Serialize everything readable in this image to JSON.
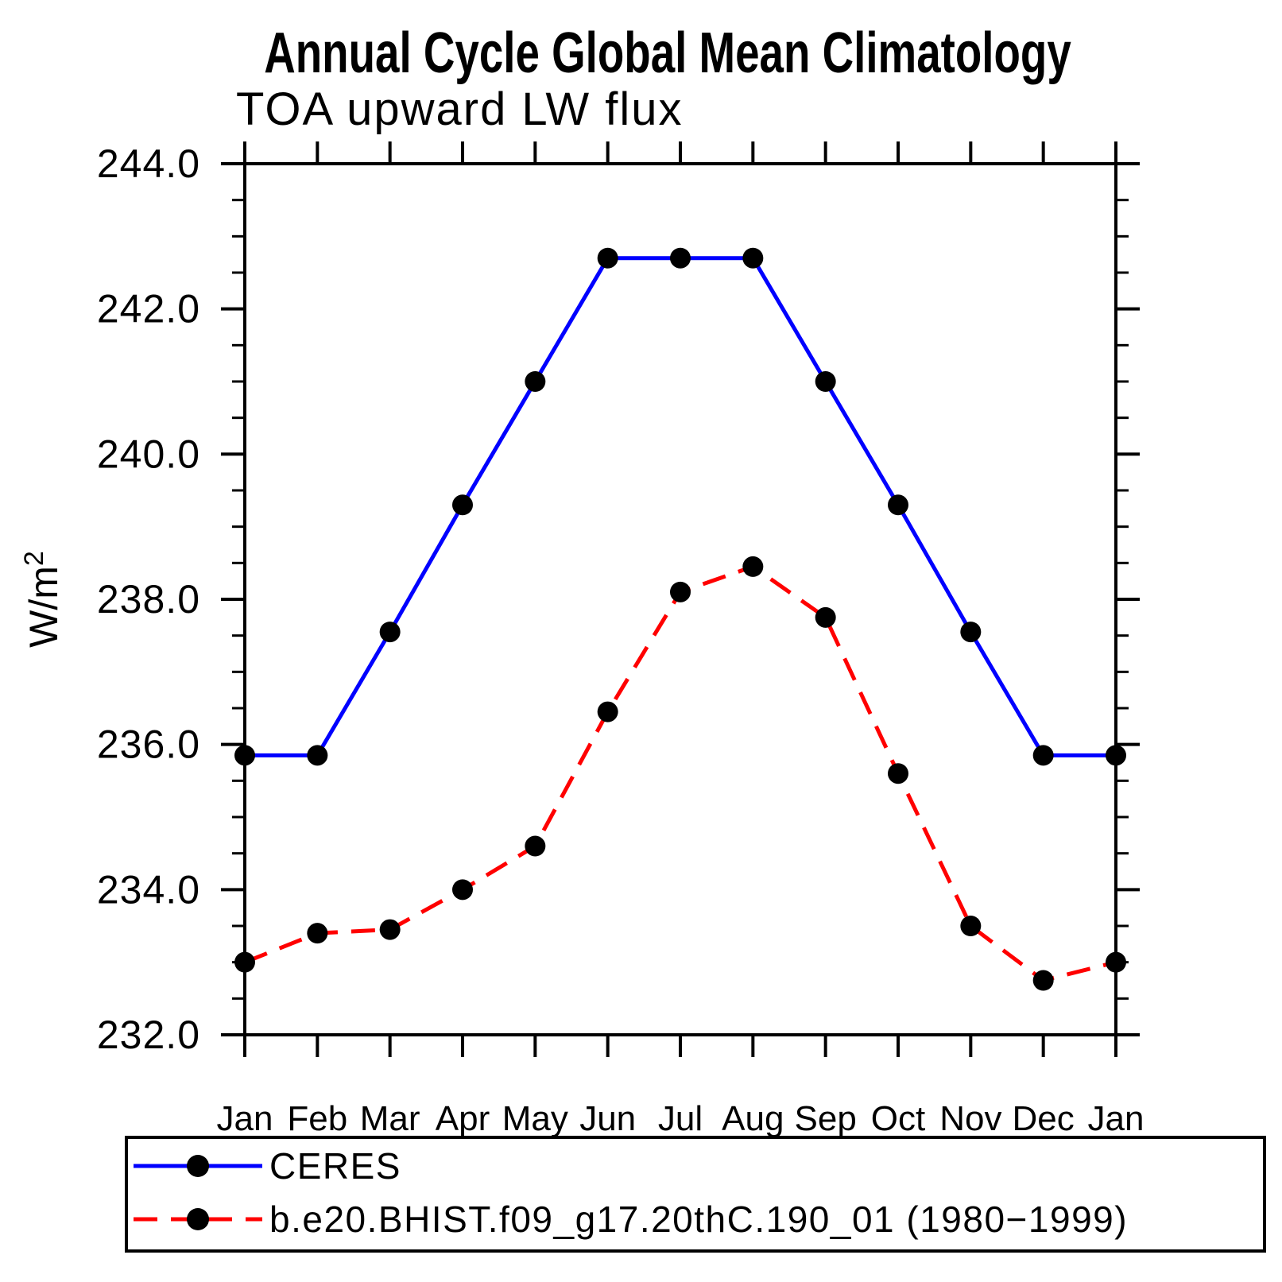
{
  "chart_data": {
    "type": "line",
    "title": "Annual Cycle Global Mean Climatology",
    "subtitle": "TOA upward LW flux",
    "ylabel": "W/m²",
    "ylabel_base": "W/m",
    "ylabel_sup": "2",
    "categories": [
      "Jan",
      "Feb",
      "Mar",
      "Apr",
      "May",
      "Jun",
      "Jul",
      "Aug",
      "Sep",
      "Oct",
      "Nov",
      "Dec",
      "Jan"
    ],
    "ylim": [
      232.0,
      244.0
    ],
    "ytick_major_step": 2.0,
    "ytick_minor_step": 0.5,
    "ytick_labels": [
      "232.0",
      "234.0",
      "236.0",
      "238.0",
      "240.0",
      "242.0",
      "244.0"
    ],
    "grid": false,
    "legend_position": "bottom",
    "axis_color": "#000000",
    "marker_color": "#000000",
    "series": [
      {
        "name": "CERES",
        "color": "#0000ff",
        "style": "solid",
        "marker": "circle",
        "values": [
          235.85,
          235.85,
          237.55,
          239.3,
          241.0,
          242.7,
          242.7,
          242.7,
          241.0,
          239.3,
          237.55,
          235.85,
          235.85
        ]
      },
      {
        "name": "b.e20.BHIST.f09_g17.20thC.190_01 (1980−1999)",
        "color": "#ff0000",
        "style": "dashed",
        "marker": "circle",
        "values": [
          233.0,
          233.4,
          233.45,
          234.0,
          234.6,
          236.45,
          238.1,
          238.45,
          237.75,
          235.6,
          233.5,
          232.75,
          233.0
        ]
      }
    ]
  }
}
